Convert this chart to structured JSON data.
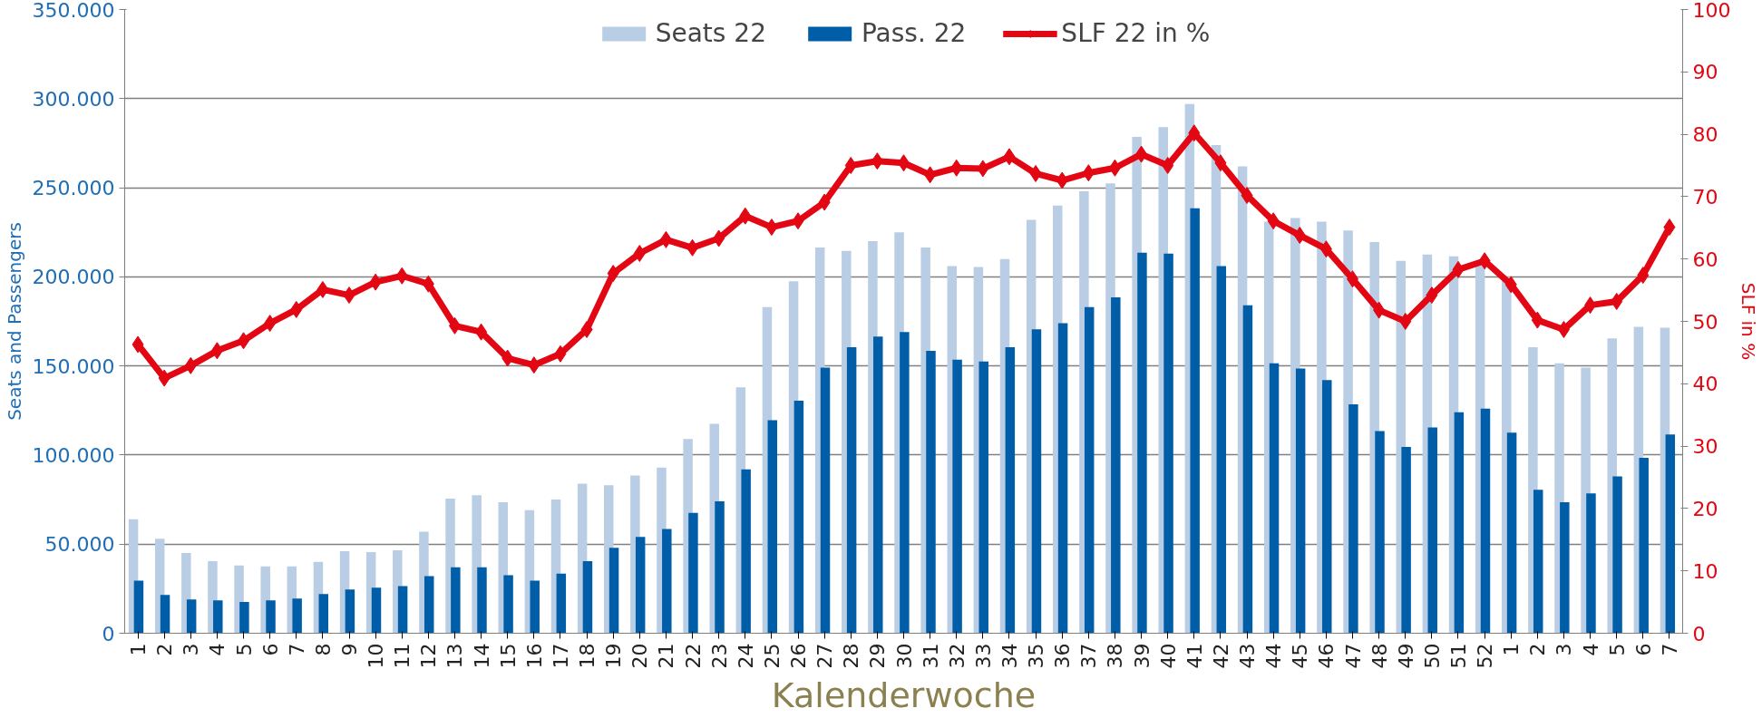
{
  "chart_data": {
    "type": "bar",
    "xlabel": "Kalenderwoche",
    "ylabel": "Seats and Passengers",
    "y2label": "SLF in %",
    "categories": [
      "1",
      "2",
      "3",
      "4",
      "5",
      "6",
      "7",
      "8",
      "9",
      "10",
      "11",
      "12",
      "13",
      "14",
      "15",
      "16",
      "17",
      "18",
      "19",
      "20",
      "21",
      "22",
      "23",
      "24",
      "25",
      "26",
      "27",
      "28",
      "29",
      "30",
      "31",
      "32",
      "33",
      "34",
      "35",
      "36",
      "37",
      "38",
      "39",
      "40",
      "41",
      "42",
      "43",
      "44",
      "45",
      "46",
      "47",
      "48",
      "49",
      "50",
      "51",
      "52",
      "1",
      "2",
      "3",
      "4",
      "5",
      "6",
      "7"
    ],
    "series": [
      {
        "name": "Seats 22",
        "color": "#b9cde5",
        "values": [
          64000,
          53000,
          45000,
          40500,
          38000,
          37500,
          37500,
          40000,
          46000,
          45500,
          46500,
          57000,
          75500,
          77500,
          73500,
          69000,
          75000,
          84000,
          83000,
          88500,
          93000,
          109000,
          117500,
          138000,
          183000,
          197500,
          216500,
          214500,
          220000,
          225000,
          216500,
          206000,
          205500,
          210000,
          232000,
          240000,
          248000,
          252500,
          278500,
          284000,
          297000,
          274000,
          262000,
          231000,
          233000,
          231000,
          226000,
          219500,
          209000,
          212500,
          211500,
          207000,
          200000,
          160500,
          151500,
          149000,
          165500,
          172000,
          171500
        ]
      },
      {
        "name": "Pass. 22",
        "color": "#005ea8",
        "values": [
          29500,
          21500,
          19000,
          18500,
          17500,
          18500,
          19500,
          22000,
          24500,
          25500,
          26500,
          32000,
          37000,
          37000,
          32500,
          29500,
          33500,
          40500,
          48000,
          54000,
          58500,
          67500,
          74000,
          92000,
          119500,
          130500,
          149000,
          160500,
          166500,
          169000,
          158500,
          153500,
          152500,
          160500,
          170500,
          174000,
          183000,
          188500,
          213500,
          213000,
          238500,
          206000,
          184000,
          151500,
          148500,
          142000,
          128500,
          113500,
          104500,
          115500,
          124000,
          126000,
          112500,
          80500,
          73500,
          78500,
          88000,
          98500,
          111500
        ]
      },
      {
        "name": "SLF 22 in %",
        "type": "line",
        "axis": "y2",
        "color": "#e30613",
        "marker": "diamond",
        "values": [
          46.3,
          40.9,
          42.9,
          45.3,
          46.9,
          49.7,
          51.9,
          55.1,
          54.2,
          56.3,
          57.3,
          56.0,
          49.3,
          48.3,
          44.1,
          43.0,
          44.8,
          48.7,
          57.7,
          60.9,
          63.1,
          61.8,
          63.3,
          66.9,
          65.1,
          66.1,
          69.1,
          75.0,
          75.7,
          75.4,
          73.5,
          74.6,
          74.5,
          76.4,
          73.7,
          72.6,
          73.8,
          74.6,
          76.8,
          75.0,
          80.2,
          75.4,
          70.2,
          66.1,
          63.8,
          61.6,
          56.8,
          51.8,
          50.0,
          54.2,
          58.3,
          59.7,
          55.9,
          50.2,
          48.7,
          52.6,
          53.2,
          57.4,
          65.1
        ]
      }
    ],
    "ylim": [
      0,
      350000
    ],
    "yticks": [
      {
        "value": 0,
        "label": "0"
      },
      {
        "value": 50000,
        "label": "50.000"
      },
      {
        "value": 100000,
        "label": "100.000"
      },
      {
        "value": 150000,
        "label": "150.000"
      },
      {
        "value": 200000,
        "label": "200.000"
      },
      {
        "value": 250000,
        "label": "250.000"
      },
      {
        "value": 300000,
        "label": "300.000"
      },
      {
        "value": 350000,
        "label": "350.000"
      }
    ],
    "y2lim": [
      0,
      100
    ],
    "y2ticks": [
      0,
      10,
      20,
      30,
      40,
      50,
      60,
      70,
      80,
      90,
      100
    ],
    "grid": "y",
    "legend": "top"
  }
}
